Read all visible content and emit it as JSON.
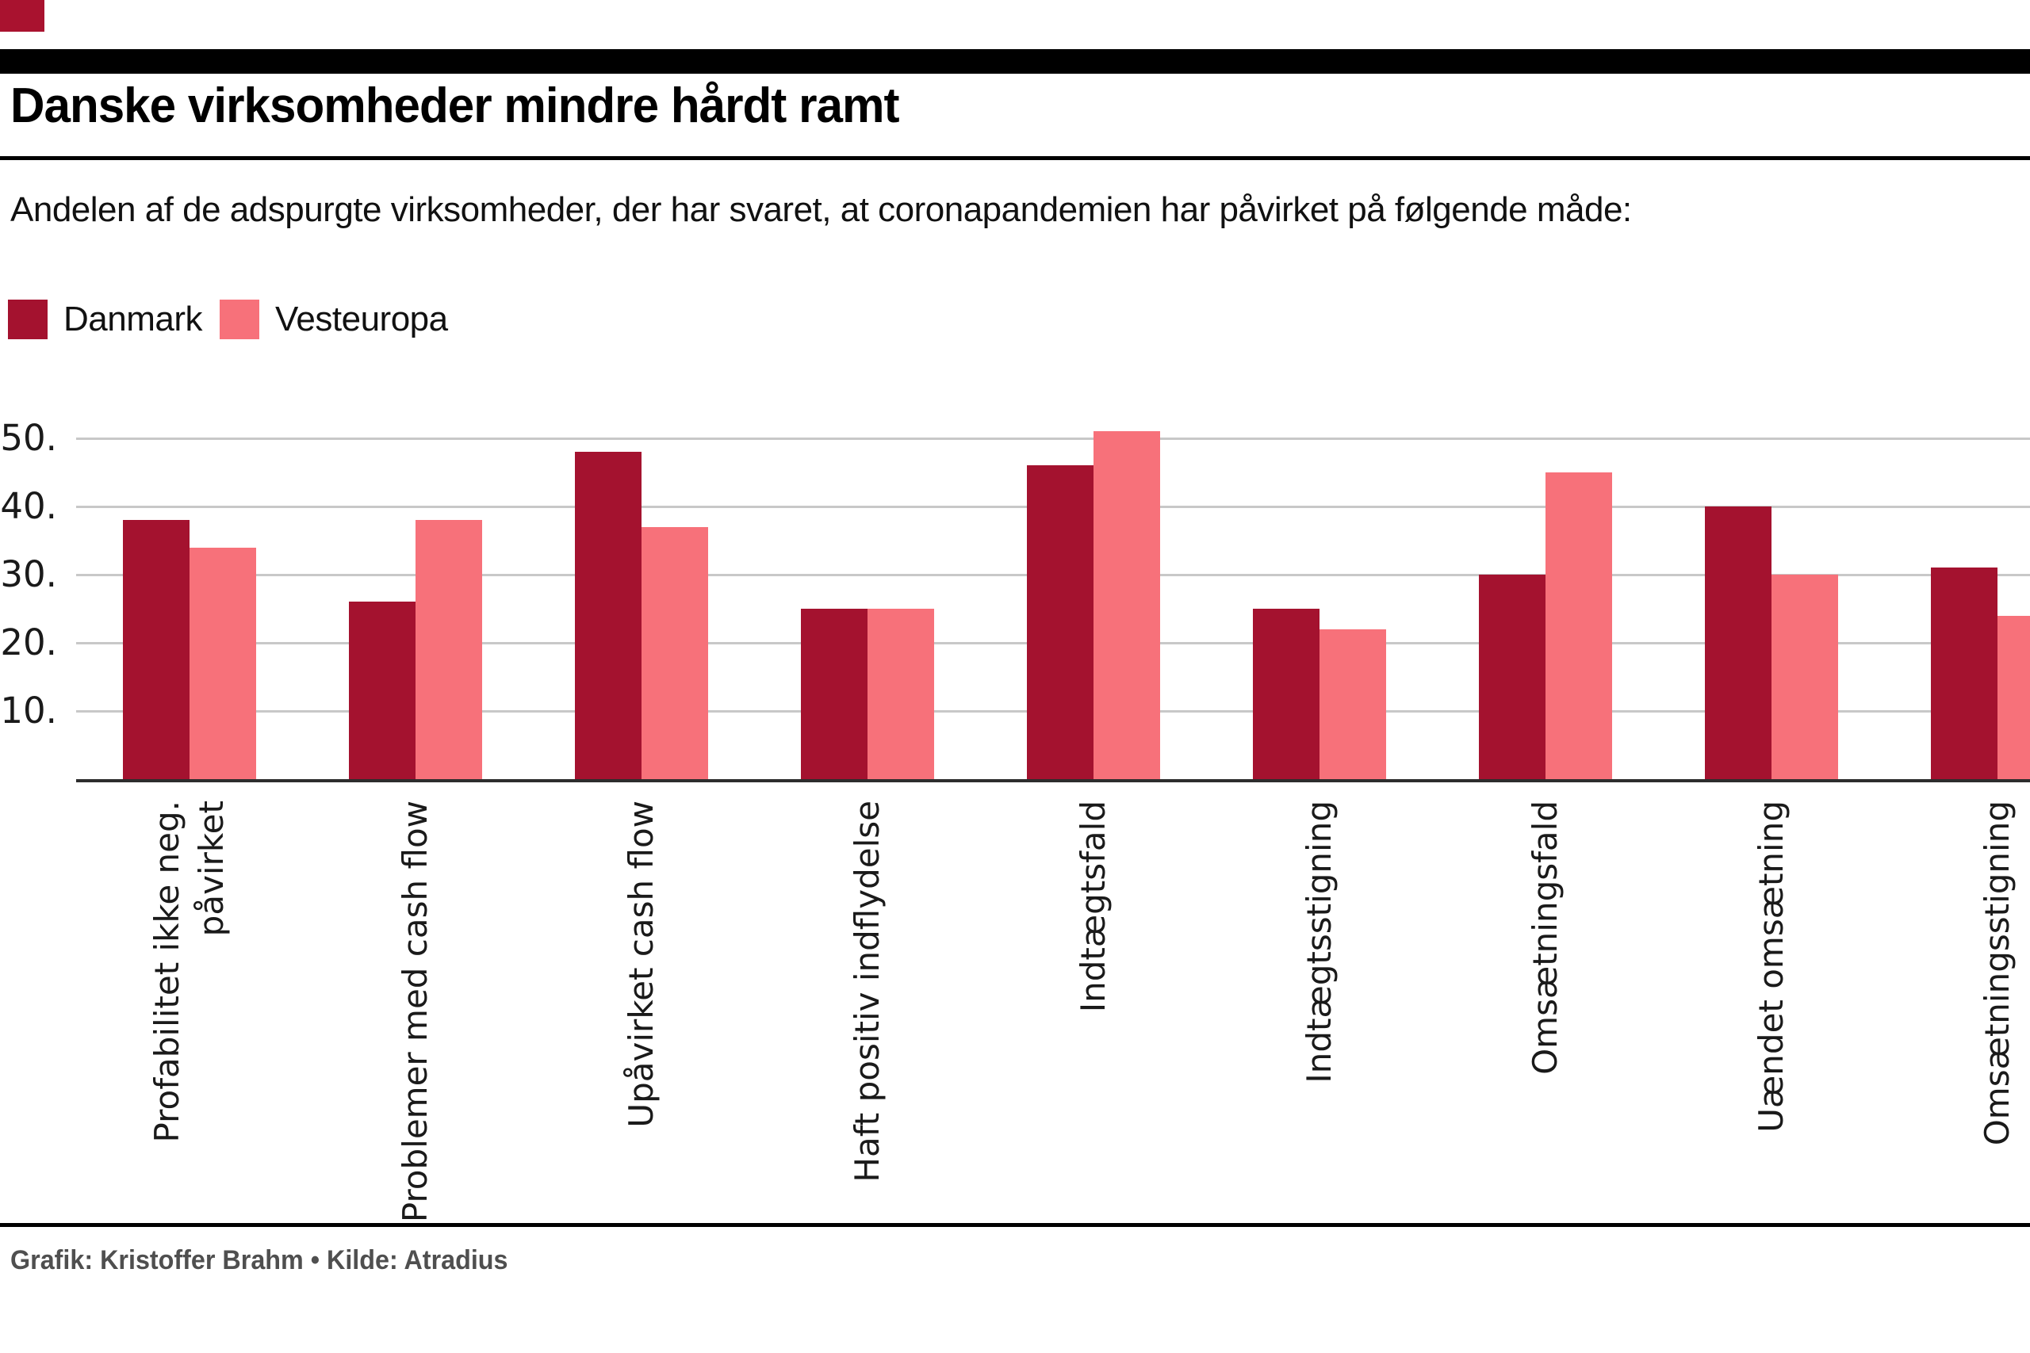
{
  "header": {
    "title": "Danske virksomheder mindre hårdt ramt",
    "subtitle": "Andelen af de adspurgte virksomheder, der har svaret, at coronapandemien har påvirket på følgende måde:"
  },
  "colors": {
    "danmark": "#a4122f",
    "vesteuropa": "#f7717a",
    "corner_badge": "#a9122f",
    "gridline": "#c8c8c8",
    "axis": "#2d2d2d"
  },
  "chart_data": {
    "type": "bar",
    "categories": [
      "Profabilitet ikke neg.\npåvirket",
      "Problemer med cash flow",
      "Upåvirket cash flow",
      "Haft positiv indflydelse",
      "Indtægtsfald",
      "Indtægtsstigning",
      "Omsætningsfald",
      "Uændet omsætning",
      "Omsætningsstigning"
    ],
    "series": [
      {
        "name": "Danmark",
        "color": "#a4122f",
        "values": [
          38,
          26,
          48,
          25,
          46,
          25,
          30,
          40,
          31
        ]
      },
      {
        "name": "Vesteuropa",
        "color": "#f7717a",
        "values": [
          34,
          38,
          37,
          25,
          51,
          22,
          45,
          30,
          24
        ]
      }
    ],
    "title": "",
    "xlabel": "",
    "ylabel": "",
    "ylim": [
      0,
      52
    ],
    "yticks": [
      10,
      20,
      30,
      40,
      50
    ],
    "ytick_suffix": ".",
    "grid": true,
    "legend_position": "top-left"
  },
  "footer": {
    "credit": "Grafik: Kristoffer Brahm • Kilde: Atradius"
  }
}
